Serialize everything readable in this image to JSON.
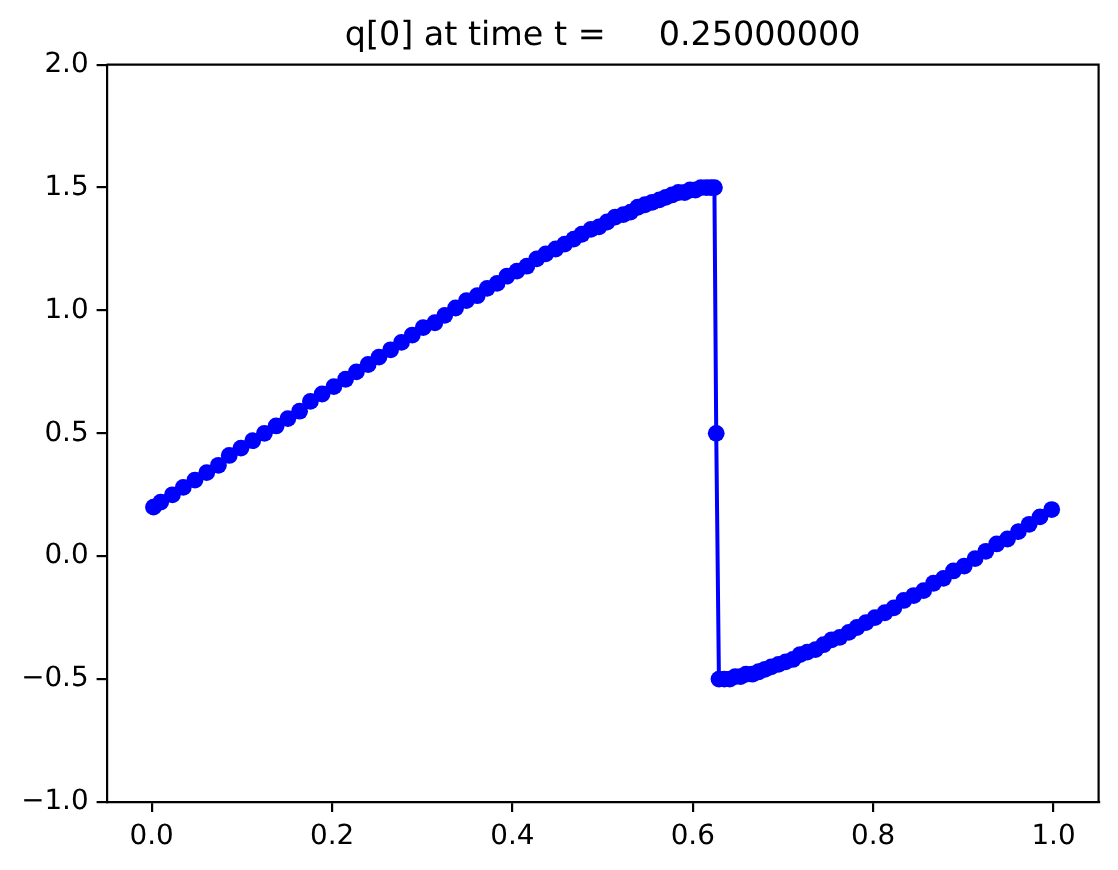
{
  "chart_data": {
    "type": "line",
    "title": "q[0] at time t =     0.25000000",
    "x": [
      0.002,
      0.01,
      0.023,
      0.035,
      0.048,
      0.061,
      0.074,
      0.086,
      0.099,
      0.112,
      0.125,
      0.138,
      0.151,
      0.164,
      0.176,
      0.189,
      0.202,
      0.215,
      0.227,
      0.24,
      0.252,
      0.265,
      0.277,
      0.289,
      0.301,
      0.314,
      0.325,
      0.337,
      0.349,
      0.361,
      0.372,
      0.383,
      0.394,
      0.405,
      0.416,
      0.427,
      0.437,
      0.448,
      0.458,
      0.468,
      0.477,
      0.487,
      0.496,
      0.505,
      0.514,
      0.523,
      0.531,
      0.539,
      0.547,
      0.555,
      0.563,
      0.57,
      0.577,
      0.584,
      0.591,
      0.597,
      0.603,
      0.609,
      0.615,
      0.62,
      0.624,
      0.626,
      0.629,
      0.635,
      0.641,
      0.647,
      0.653,
      0.659,
      0.666,
      0.673,
      0.68,
      0.687,
      0.695,
      0.703,
      0.711,
      0.719,
      0.727,
      0.736,
      0.745,
      0.754,
      0.763,
      0.773,
      0.782,
      0.792,
      0.802,
      0.813,
      0.823,
      0.834,
      0.845,
      0.856,
      0.867,
      0.878,
      0.889,
      0.901,
      0.913,
      0.925,
      0.937,
      0.949,
      0.961,
      0.973,
      0.985,
      0.998
    ],
    "values": [
      0.2,
      0.22,
      0.25,
      0.28,
      0.31,
      0.34,
      0.37,
      0.41,
      0.44,
      0.47,
      0.5,
      0.53,
      0.56,
      0.59,
      0.63,
      0.66,
      0.69,
      0.72,
      0.75,
      0.78,
      0.81,
      0.84,
      0.87,
      0.9,
      0.93,
      0.95,
      0.98,
      1.01,
      1.04,
      1.06,
      1.09,
      1.11,
      1.14,
      1.16,
      1.18,
      1.21,
      1.23,
      1.25,
      1.27,
      1.29,
      1.31,
      1.33,
      1.34,
      1.36,
      1.38,
      1.39,
      1.4,
      1.42,
      1.43,
      1.44,
      1.45,
      1.46,
      1.47,
      1.48,
      1.48,
      1.49,
      1.49,
      1.5,
      1.5,
      1.5,
      1.5,
      0.5,
      -0.5,
      -0.5,
      -0.5,
      -0.49,
      -0.49,
      -0.48,
      -0.48,
      -0.47,
      -0.46,
      -0.45,
      -0.44,
      -0.43,
      -0.42,
      -0.4,
      -0.39,
      -0.38,
      -0.36,
      -0.34,
      -0.33,
      -0.31,
      -0.29,
      -0.27,
      -0.25,
      -0.23,
      -0.21,
      -0.18,
      -0.16,
      -0.14,
      -0.11,
      -0.09,
      -0.06,
      -0.04,
      -0.01,
      0.02,
      0.05,
      0.07,
      0.1,
      0.13,
      0.16,
      0.19
    ],
    "color": "#0000ff",
    "marker": "circle",
    "line_style": "solid",
    "grid": false,
    "xlim": [
      -0.05,
      1.05
    ],
    "ylim": [
      -1.0,
      2.0
    ],
    "xticks": [
      {
        "value": 0,
        "label": "0.0"
      },
      0.2,
      0.4,
      0.6,
      0.8,
      {
        "value": 1,
        "label": "1.0"
      }
    ],
    "yticks": [
      {
        "value": -1,
        "label": "−1.0"
      },
      {
        "value": -0.5,
        "label": "−0.5"
      },
      {
        "value": 0,
        "label": "0.0"
      },
      0.5,
      {
        "value": 1,
        "label": "1.0"
      },
      1.5,
      {
        "value": 2,
        "label": "2.0"
      }
    ]
  }
}
